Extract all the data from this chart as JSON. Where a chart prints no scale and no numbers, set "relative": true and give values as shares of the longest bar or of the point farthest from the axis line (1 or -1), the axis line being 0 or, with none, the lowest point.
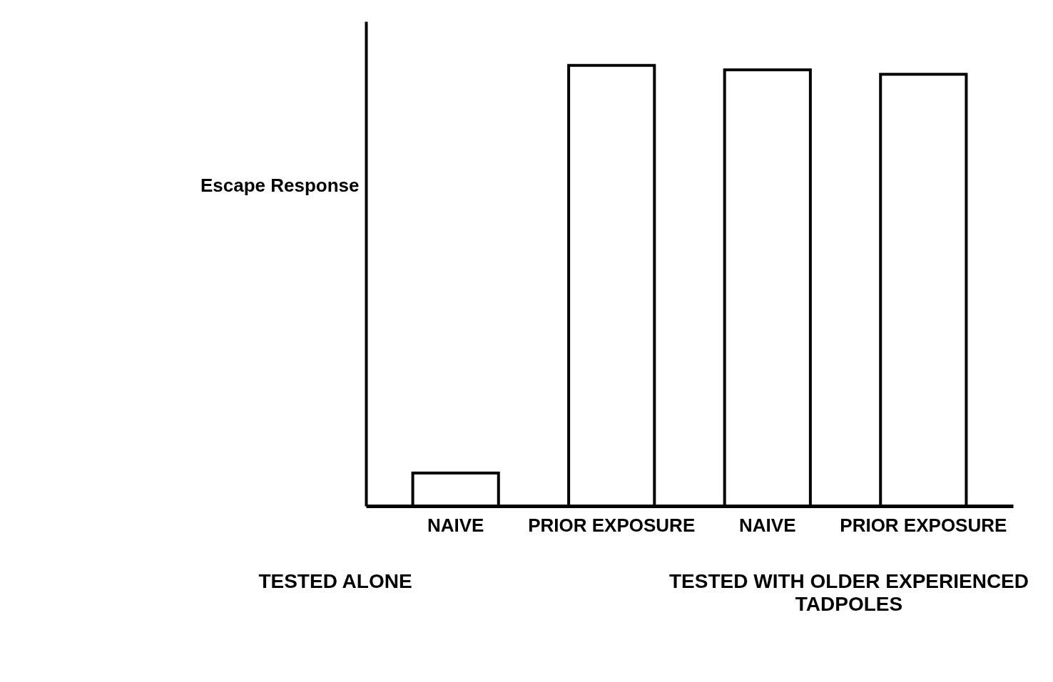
{
  "chart_data": {
    "type": "bar",
    "relative": true,
    "ylabel": "Escape Response",
    "categories": [
      "NAIVE",
      "PRIOR EXPOSURE",
      "NAIVE",
      "PRIOR EXPOSURE"
    ],
    "values": [
      0.075,
      1,
      0.99,
      0.98
    ],
    "color": "#ffffff",
    "annotations": [
      "TESTED ALONE",
      "TESTED WITH OLDER EXPERIENCED TADPOLES"
    ]
  }
}
